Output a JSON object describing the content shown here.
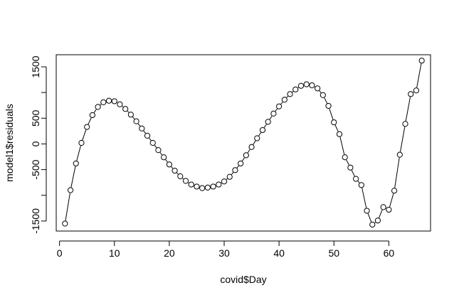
{
  "chart_data": {
    "type": "line",
    "title": "",
    "xlabel": "covid$Day",
    "ylabel": "model1$residuals",
    "xlim": [
      -0.6,
      67.6
    ],
    "ylim": [
      -1695,
      1735
    ],
    "x_ticks": [
      0,
      10,
      20,
      30,
      40,
      50,
      60
    ],
    "x_tick_labels": [
      "0",
      "10",
      "20",
      "30",
      "40",
      "50",
      "60"
    ],
    "y_ticks": [
      -1500,
      -1000,
      -500,
      0,
      500,
      1000,
      1500
    ],
    "y_tick_labels": [
      "-1500",
      "",
      "-500",
      "0",
      "500",
      "",
      "1500"
    ],
    "grid": false,
    "legend": "none",
    "marker": "open-circle",
    "line_color": "#000000",
    "series": [
      {
        "x": [
          1,
          2,
          3,
          4,
          5,
          6,
          7,
          8,
          9,
          10,
          11,
          12,
          13,
          14,
          15,
          16,
          17,
          18,
          19,
          20,
          21,
          22,
          23,
          24,
          25,
          26,
          27,
          28,
          29,
          30,
          31,
          32,
          33,
          34,
          35,
          36,
          37,
          38,
          39,
          40,
          41,
          42,
          43,
          44,
          45,
          46,
          47,
          48,
          49,
          50,
          51,
          52,
          53,
          54,
          55,
          56,
          57,
          58,
          59,
          60,
          61,
          62,
          63,
          64,
          65,
          66
        ],
        "y": [
          -1550,
          -900,
          -380,
          20,
          330,
          560,
          720,
          810,
          840,
          830,
          770,
          680,
          570,
          440,
          300,
          160,
          20,
          -120,
          -260,
          -400,
          -520,
          -630,
          -720,
          -790,
          -830,
          -860,
          -850,
          -830,
          -790,
          -730,
          -640,
          -510,
          -380,
          -220,
          -60,
          110,
          270,
          430,
          590,
          730,
          860,
          970,
          1060,
          1130,
          1160,
          1140,
          1080,
          950,
          740,
          420,
          190,
          -260,
          -460,
          -680,
          -800,
          -1300,
          -1570,
          -1490,
          -1230,
          -1280,
          -910,
          -210,
          390,
          970,
          1040,
          1620
        ]
      }
    ]
  }
}
